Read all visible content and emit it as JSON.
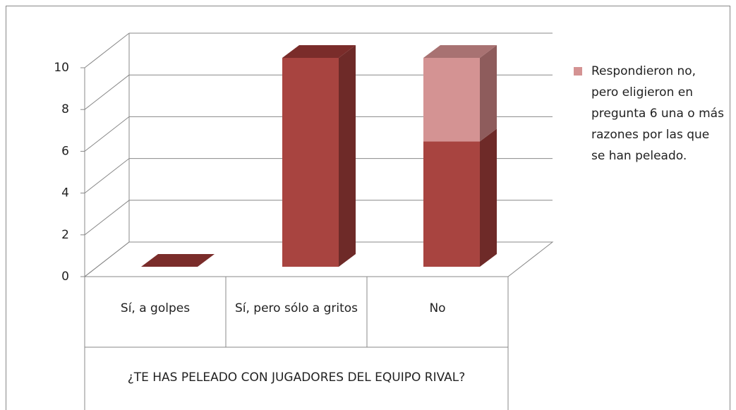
{
  "chart_data": {
    "type": "bar3d_stacked",
    "x_label": "¿TE HAS PELEADO CON JUGADORES DEL EQUIPO RIVAL?",
    "categories": [
      "Sí, a golpes",
      "Sí, pero sólo a gritos",
      "No"
    ],
    "series": [
      {
        "color": "#a84440",
        "side": "#6e2a28",
        "top": "#7a2c2a",
        "values": [
          0,
          10,
          6
        ]
      },
      {
        "name": "Respondieron no, pero eligieron en pregunta 6 una o más razones por las que se han peleado.",
        "color": "#d49393",
        "side": "#8e5c5c",
        "top": "#a87272",
        "values": [
          0,
          0,
          4
        ]
      }
    ],
    "ylim": [
      0,
      10
    ],
    "yticks": [
      0,
      2,
      4,
      6,
      8,
      10
    ],
    "grid": true,
    "legend": "right"
  }
}
